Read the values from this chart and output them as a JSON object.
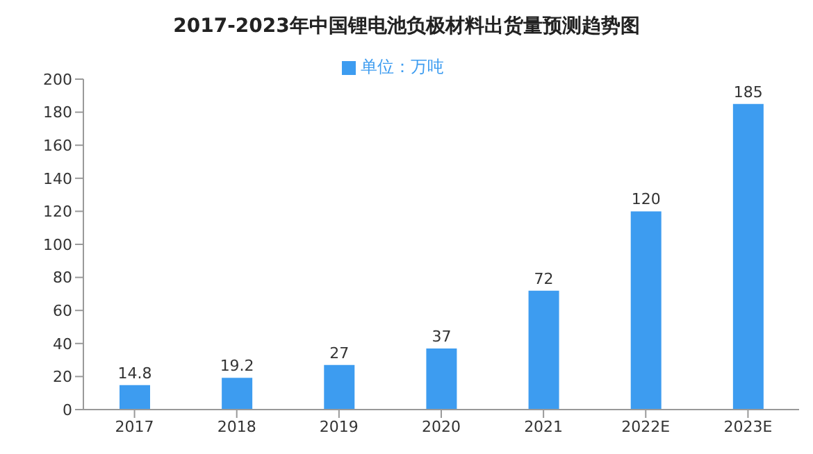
{
  "chart_data": {
    "type": "bar",
    "title": "2017-2023年中国锂电池负极材料出货量预测趋势图",
    "categories": [
      "2017",
      "2018",
      "2019",
      "2020",
      "2021",
      "2022E",
      "2023E"
    ],
    "series": [
      {
        "name": "单位：万吨",
        "color": "#3d9cf0",
        "values": [
          14.8,
          19.2,
          27,
          37,
          72,
          120,
          185
        ]
      }
    ],
    "ylim": [
      0,
      200
    ],
    "yticks": [
      0,
      20,
      40,
      60,
      80,
      100,
      120,
      140,
      160,
      180,
      200
    ],
    "data_labels": true,
    "legend": "top",
    "grid": false
  }
}
